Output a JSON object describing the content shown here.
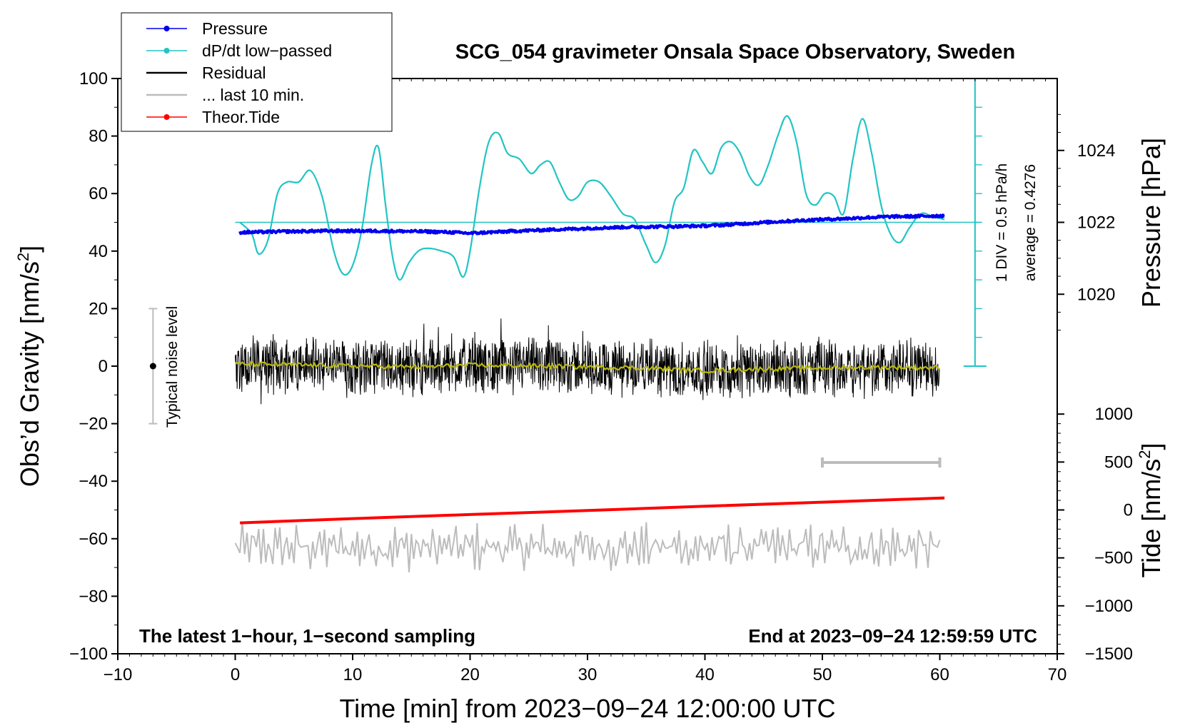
{
  "chart_data": {
    "type": "line",
    "title": "SCG_054 gravimeter Onsala Space Observatory, Sweden",
    "xlabel": "Time [min] from 2023−09−24 12:00:00 UTC",
    "ylabel_main": "Obs’d Gravity [nm/s",
    "ylabel_main_sup": "2",
    "ylabel_main_close": "]",
    "ylabel_pressure": "Pressure [hPa]",
    "ylabel_tide": "Tide [nm/s",
    "ylabel_tide_sup": "2",
    "ylabel_tide_close": "]",
    "xlim": [
      -10,
      70
    ],
    "ylim": [
      -100,
      100
    ],
    "x_ticks": [
      {
        "v": -10,
        "t": "−10"
      },
      {
        "v": 0,
        "t": "0"
      },
      {
        "v": 10,
        "t": "10"
      },
      {
        "v": 20,
        "t": "20"
      },
      {
        "v": 30,
        "t": "30"
      },
      {
        "v": 40,
        "t": "40"
      },
      {
        "v": 50,
        "t": "50"
      },
      {
        "v": 60,
        "t": "60"
      },
      {
        "v": 70,
        "t": "70"
      }
    ],
    "y_ticks": [
      {
        "v": 100,
        "t": "100"
      },
      {
        "v": 80,
        "t": "80"
      },
      {
        "v": 60,
        "t": "60"
      },
      {
        "v": 40,
        "t": "40"
      },
      {
        "v": 20,
        "t": "20"
      },
      {
        "v": 0,
        "t": "0"
      },
      {
        "v": -20,
        "t": "−20"
      },
      {
        "v": -40,
        "t": "−40"
      },
      {
        "v": -60,
        "t": "−60"
      },
      {
        "v": -80,
        "t": "−80"
      },
      {
        "v": -100,
        "t": "−100"
      }
    ],
    "pressure_axis": {
      "ticks": [
        {
          "v": 1024,
          "t": "1024"
        },
        {
          "v": 1022,
          "t": "1022"
        },
        {
          "v": 1020,
          "t": "1020"
        }
      ],
      "anchor_value": 1022,
      "anchor_gravity": 50,
      "units_per_hpa": 12.5
    },
    "tide_axis": {
      "ticks": [
        {
          "v": 1000,
          "t": "1000"
        },
        {
          "v": 500,
          "t": "500"
        },
        {
          "v": 0,
          "t": "0"
        },
        {
          "v": -500,
          "t": "−500"
        },
        {
          "v": -1000,
          "t": "−1000"
        },
        {
          "v": -1500,
          "t": "−1500"
        }
      ],
      "anchor_value": 0,
      "anchor_gravity": -50,
      "units_per_nm": 0.03333
    },
    "series": [
      {
        "name": "Pressure",
        "color": "#0000ee",
        "x": [
          0.4,
          2,
          4,
          6,
          8,
          10,
          12,
          14,
          16,
          18,
          20,
          22,
          24,
          26,
          28,
          30,
          32,
          34,
          36,
          38,
          40,
          42,
          44,
          46,
          48,
          50,
          52,
          54,
          56,
          58,
          60.4
        ],
        "y": [
          46.5,
          46.6,
          46.8,
          46.9,
          47.0,
          47.0,
          47.0,
          46.9,
          46.8,
          46.6,
          46.2,
          46.6,
          47.0,
          47.3,
          47.6,
          47.9,
          48.2,
          48.4,
          48.5,
          48.6,
          48.8,
          49.2,
          49.7,
          50.2,
          50.6,
          51.0,
          51.3,
          51.7,
          52.0,
          52.1,
          52.3
        ]
      },
      {
        "name": "dP/dt low−passed",
        "color": "#22c4c4",
        "x": [
          0.4,
          1.4,
          2.0,
          2.8,
          3.6,
          4.4,
          5.4,
          6.4,
          7.4,
          8.4,
          9.2,
          10.0,
          10.8,
          11.6,
          12.2,
          12.8,
          13.4,
          14.0,
          14.8,
          15.6,
          16.4,
          17.6,
          18.6,
          19.4,
          20.0,
          20.8,
          21.6,
          22.4,
          23.2,
          24.2,
          25.2,
          26.0,
          26.8,
          27.6,
          28.4,
          29.2,
          30.0,
          31.0,
          32.0,
          33.0,
          34.0,
          35.0,
          35.8,
          36.6,
          37.4,
          38.2,
          39.0,
          39.8,
          40.6,
          41.4,
          42.2,
          43.0,
          43.8,
          44.6,
          45.4,
          46.2,
          47.0,
          47.8,
          48.6,
          49.4,
          50.2,
          51.0,
          51.8,
          52.6,
          53.4,
          54.2,
          55.0,
          55.8,
          56.6,
          57.4,
          58.4,
          59.4,
          60.4
        ],
        "y": [
          50,
          46,
          39,
          44,
          60,
          64,
          64,
          68,
          59,
          40,
          32,
          35,
          48,
          70,
          76,
          56,
          38,
          30,
          36,
          40,
          41,
          40,
          38,
          31,
          40,
          62,
          78,
          81,
          74,
          72,
          67,
          70,
          71,
          64,
          58,
          59,
          64,
          64,
          59,
          53,
          51,
          42,
          36,
          42,
          57,
          62,
          75,
          71,
          67,
          76,
          78,
          74,
          66,
          63,
          70,
          80,
          87,
          78,
          60,
          56,
          60,
          59,
          53,
          72,
          86,
          74,
          56,
          46,
          43,
          48,
          53,
          52,
          51
        ]
      },
      {
        "name": "Residual",
        "color": "#000000",
        "x_start": 0,
        "x_end": 60,
        "amplitude": 11
      },
      {
        "name": "... last 10 min.",
        "color": "#bcbcbc",
        "x_start": 0,
        "x_end": 60,
        "baseline": -63,
        "amplitude": 7
      },
      {
        "name": "Theor.Tide",
        "color": "#ff0000",
        "x": [
          0.4,
          10,
          20,
          30,
          40,
          50,
          60.4
        ],
        "y": [
          -54.5,
          -53.0,
          -51.6,
          -50.2,
          -48.7,
          -47.3,
          -45.8
        ]
      },
      {
        "name": "Residual smoothed",
        "color": "#b8b814",
        "x": [
          0,
          4,
          8,
          12,
          16,
          20,
          24,
          28,
          32,
          36,
          40,
          44,
          48,
          52,
          56,
          60
        ],
        "y": [
          0.8,
          0.5,
          0.2,
          0.0,
          -0.3,
          0.3,
          0.2,
          -0.1,
          -0.4,
          -0.8,
          -1.6,
          -1.0,
          -0.8,
          -0.5,
          -0.4,
          -0.6
        ]
      }
    ],
    "reference_line": {
      "y": 50,
      "color": "#22c4c4"
    },
    "legend": [
      {
        "label": "Pressure",
        "color": "#0000ee",
        "marker": true
      },
      {
        "label": "dP/dt low−passed",
        "color": "#22c4c4",
        "marker": true
      },
      {
        "label": "Residual",
        "color": "#000000",
        "marker": false
      },
      {
        "label": "... last 10 min.",
        "color": "#bcbcbc",
        "marker": false
      },
      {
        "label": "Theor.Tide",
        "color": "#ff0000",
        "marker": true
      }
    ],
    "legend_placement": "top-left",
    "annotations": {
      "noise_level": "Typical noise level",
      "noise_range": [
        -20,
        20
      ],
      "noise_center": 0,
      "noise_x": -7,
      "div_note": "1 DIV = 0.5 hPa/h",
      "average_note": "average = 0.4276",
      "dpdt_scale_x": 63,
      "dpdt_scale_range": [
        0,
        100
      ],
      "last10_bar_range": [
        50,
        60
      ],
      "last10_bar_y": -33.5,
      "bottom_left_note": "The latest 1−hour, 1−second sampling",
      "bottom_right_note": "End at 2023−09−24 12:59:59 UTC"
    }
  }
}
